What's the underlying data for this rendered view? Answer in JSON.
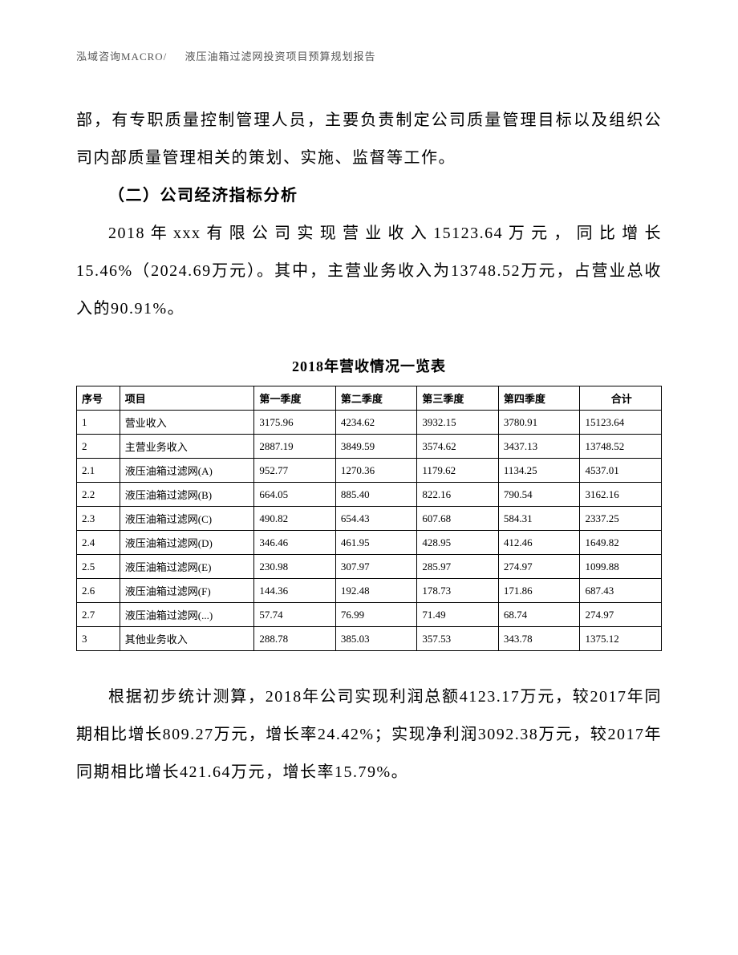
{
  "header": {
    "left": "泓域咨询MACRO/",
    "right": "液压油箱过滤网投资项目预算规划报告"
  },
  "para1": "部，有专职质量控制管理人员，主要负责制定公司质量管理目标以及组织公司内部质量管理相关的策划、实施、监督等工作。",
  "heading1": "（二）公司经济指标分析",
  "para2": "2018年xxx有限公司实现营业收入15123.64万元，同比增长15.46%（2024.69万元）。其中，主营业务收入为13748.52万元，占营业总收入的90.91%。",
  "tableTitle": "2018年营收情况一览表",
  "table": {
    "columns": [
      "序号",
      "项目",
      "第一季度",
      "第二季度",
      "第三季度",
      "第四季度",
      "合计"
    ],
    "rows": [
      [
        "1",
        "营业收入",
        "3175.96",
        "4234.62",
        "3932.15",
        "3780.91",
        "15123.64"
      ],
      [
        "2",
        "主营业务收入",
        "2887.19",
        "3849.59",
        "3574.62",
        "3437.13",
        "13748.52"
      ],
      [
        "2.1",
        "液压油箱过滤网(A)",
        "952.77",
        "1270.36",
        "1179.62",
        "1134.25",
        "4537.01"
      ],
      [
        "2.2",
        "液压油箱过滤网(B)",
        "664.05",
        "885.40",
        "822.16",
        "790.54",
        "3162.16"
      ],
      [
        "2.3",
        "液压油箱过滤网(C)",
        "490.82",
        "654.43",
        "607.68",
        "584.31",
        "2337.25"
      ],
      [
        "2.4",
        "液压油箱过滤网(D)",
        "346.46",
        "461.95",
        "428.95",
        "412.46",
        "1649.82"
      ],
      [
        "2.5",
        "液压油箱过滤网(E)",
        "230.98",
        "307.97",
        "285.97",
        "274.97",
        "1099.88"
      ],
      [
        "2.6",
        "液压油箱过滤网(F)",
        "144.36",
        "192.48",
        "178.73",
        "171.86",
        "687.43"
      ],
      [
        "2.7",
        "液压油箱过滤网(...)",
        "57.74",
        "76.99",
        "71.49",
        "68.74",
        "274.97"
      ],
      [
        "3",
        "其他业务收入",
        "288.78",
        "385.03",
        "357.53",
        "343.78",
        "1375.12"
      ]
    ]
  },
  "para3": "根据初步统计测算，2018年公司实现利润总额4123.17万元，较2017年同期相比增长809.27万元，增长率24.42%；实现净利润3092.38万元，较2017年同期相比增长421.64万元，增长率15.79%。"
}
